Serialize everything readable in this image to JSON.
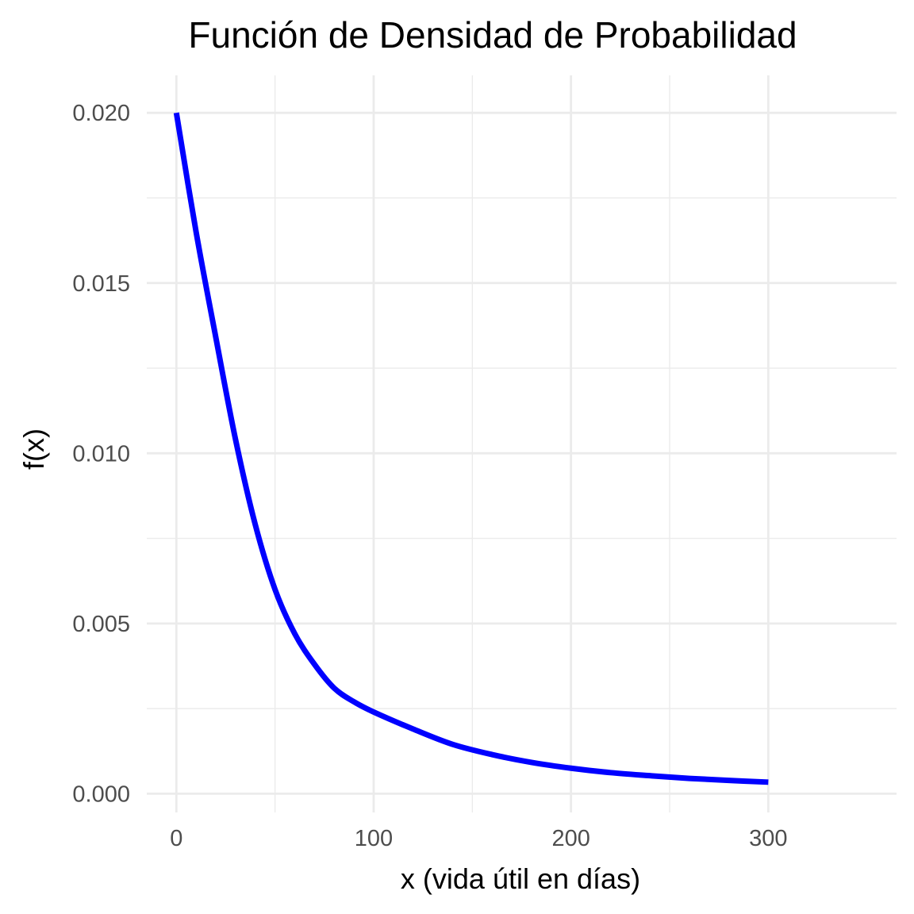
{
  "chart_data": {
    "type": "line",
    "title": "Función de Densidad de Probabilidad",
    "xlabel": "x (vida útil en días)",
    "ylabel": "f(x)",
    "xlim": [
      -15,
      365
    ],
    "ylim": [
      -0.00055,
      0.0211
    ],
    "x_ticks": [
      0,
      100,
      200,
      300
    ],
    "x_tick_labels": [
      "0",
      "100",
      "200",
      "300"
    ],
    "y_ticks": [
      0,
      0.005,
      0.01,
      0.015,
      0.02
    ],
    "y_tick_labels": [
      "0.000",
      "0.005",
      "0.010",
      "0.015",
      "0.020"
    ],
    "x_minor_ticks": [
      50,
      150,
      250
    ],
    "y_minor_ticks": [
      0.0025,
      0.0075,
      0.0125,
      0.0175
    ],
    "grid": true,
    "line_color": "#0000ff",
    "grid_color": "#ebebeb",
    "series": [
      {
        "x": [
          0,
          10,
          20,
          30,
          40,
          50,
          60,
          70,
          80,
          90,
          100,
          120,
          140,
          160,
          180,
          200,
          220,
          240,
          260,
          280,
          300
        ],
        "values": [
          0.02,
          0.0165,
          0.0134,
          0.0104,
          0.0079,
          0.006,
          0.0047,
          0.0038,
          0.0031,
          0.0027,
          0.0024,
          0.0019,
          0.00145,
          0.00115,
          0.00092,
          0.00075,
          0.00062,
          0.00053,
          0.00045,
          0.00039,
          0.00034
        ]
      }
    ]
  }
}
